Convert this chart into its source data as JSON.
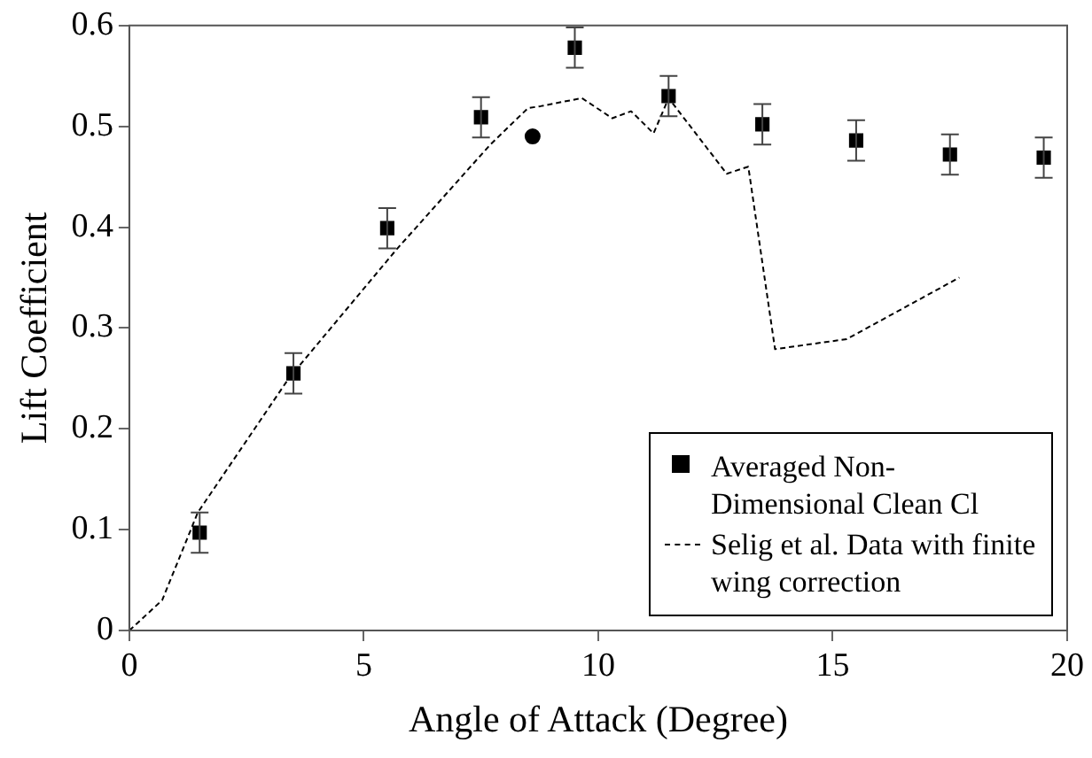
{
  "chart_data": {
    "type": "scatter",
    "xlabel": "Angle of Attack (Degree)",
    "ylabel": "Lift Coefficient",
    "xlim": [
      0,
      20
    ],
    "xticks": [
      0,
      5,
      10,
      15,
      20
    ],
    "ylim": [
      0,
      0.6
    ],
    "yticks": [
      0,
      0.1,
      0.2,
      0.3,
      0.4,
      0.5,
      0.6
    ],
    "grid": false,
    "legend": "bottom right",
    "series": [
      {
        "name": "Averaged Non-Dimensional Clean Cl",
        "marker": "square",
        "color": "#000000",
        "x": [
          1.5,
          3.5,
          5.5,
          7.5,
          9.5,
          11.5,
          13.5,
          15.5,
          17.5,
          19.5
        ],
        "values": [
          0.097,
          0.255,
          0.399,
          0.509,
          0.578,
          0.53,
          0.502,
          0.486,
          0.472,
          0.469
        ],
        "errors": [
          0.02,
          0.02,
          0.02,
          0.02,
          0.02,
          0.02,
          0.02,
          0.02,
          0.02,
          0.02
        ]
      },
      {
        "name": "Selig et al. Data with finite wing correction",
        "type": "line",
        "marker": "none",
        "line_style": "dashed",
        "color": "#000000",
        "x": [
          0,
          0.7,
          1.46,
          3.4,
          5.7,
          7.7,
          8.5,
          8.77,
          9.65,
          10.3,
          10.7,
          11.18,
          11.5,
          12.74,
          13.2,
          13.77,
          15.3,
          17.7
        ],
        "values": [
          0,
          0.03,
          0.117,
          0.25,
          0.378,
          0.482,
          0.518,
          0.52,
          0.528,
          0.508,
          0.515,
          0.493,
          0.528,
          0.453,
          0.46,
          0.279,
          0.289,
          0.35
        ]
      },
      {
        "marker": "circle",
        "color": "#000000",
        "x": [
          8.6
        ],
        "values": [
          0.49
        ]
      }
    ]
  }
}
